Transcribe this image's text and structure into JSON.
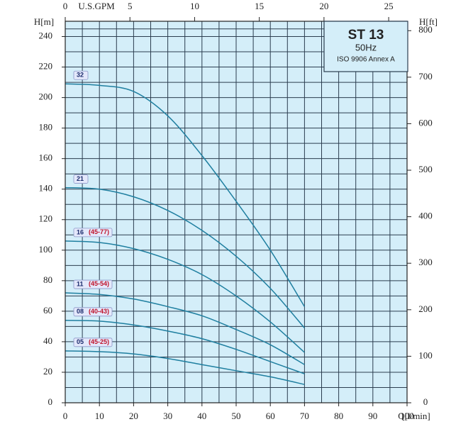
{
  "chart_data": {
    "type": "line",
    "title": "ST 13",
    "subtitle": "50Hz",
    "note": "ISO 9906 Annex A",
    "x_label": "Q[l/min]",
    "y_label": "H[m]",
    "y2_label": "H[ft]",
    "x2_label": "U.S.GPM",
    "x": [
      0,
      10,
      20,
      30,
      40,
      50,
      60,
      70
    ],
    "xlim": [
      0,
      100
    ],
    "xticks": [
      0,
      10,
      20,
      30,
      40,
      50,
      60,
      70,
      80,
      90,
      100
    ],
    "ylim": [
      0,
      250
    ],
    "yticks": [
      0,
      20,
      40,
      60,
      80,
      100,
      120,
      140,
      160,
      180,
      200,
      220,
      240
    ],
    "y2lim": [
      0,
      820.2
    ],
    "y2ticks": [
      0,
      100,
      200,
      300,
      400,
      500,
      600,
      700,
      800
    ],
    "x2lim": [
      0,
      26.42
    ],
    "x2ticks": [
      0,
      5,
      10,
      15,
      20,
      25
    ],
    "grid": true,
    "background": "#d4eef9",
    "grid_color": "#2b3d4f",
    "series": [
      {
        "name": "32",
        "color": "#1f7fa0",
        "values": [
          209,
          208,
          204,
          188,
          162,
          132,
          100,
          63
        ]
      },
      {
        "name": "21",
        "color": "#1f7fa0",
        "values": [
          141,
          140,
          135,
          126,
          113,
          96,
          75,
          49
        ]
      },
      {
        "name": "16",
        "range": "(45-77)",
        "color": "#1f7fa0",
        "values": [
          106,
          105,
          101,
          94,
          84,
          70,
          53,
          33
        ]
      },
      {
        "name": "11",
        "range": "(45-54)",
        "color": "#1f7fa0",
        "values": [
          72,
          71,
          68,
          63,
          57,
          48,
          38,
          25
        ]
      },
      {
        "name": "08",
        "range": "(40-43)",
        "color": "#1f7fa0",
        "values": [
          54,
          53.5,
          51,
          47,
          42,
          35,
          27,
          19
        ]
      },
      {
        "name": "05",
        "range": "(45-25)",
        "color": "#1f7fa0",
        "values": [
          34,
          33.5,
          32,
          29,
          25,
          21,
          17,
          12
        ]
      }
    ]
  }
}
